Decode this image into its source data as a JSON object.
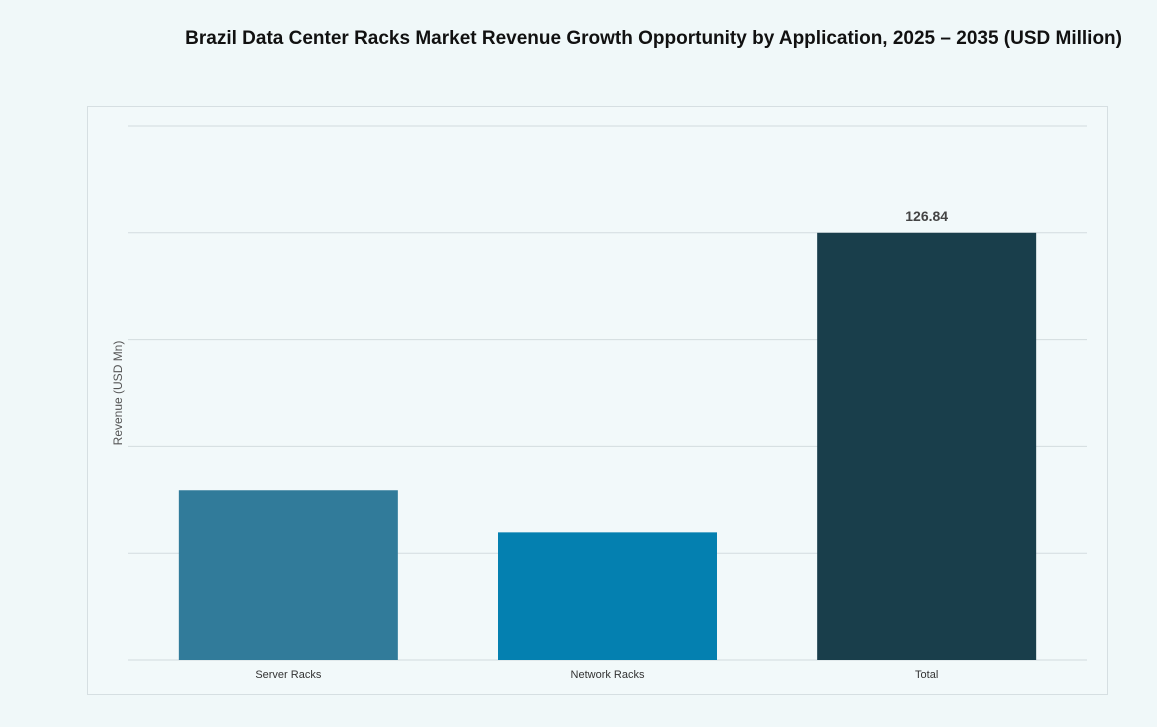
{
  "chart_data": {
    "type": "bar",
    "title": "Brazil Data Center Racks Market Revenue Growth Opportunity by Application, 2025 – 2035 (USD Million)",
    "xlabel": "",
    "ylabel": "Revenue (USD Mn)",
    "categories": [
      "Server Racks",
      "Network Racks",
      "Total"
    ],
    "values": [
      50.4,
      37.9,
      126.84
    ],
    "data_labels": [
      "",
      "",
      "126.84"
    ],
    "colors": [
      "#317b9a",
      "#0480b0",
      "#193e4b"
    ],
    "ylim": [
      0,
      158.55
    ],
    "grid": true,
    "gridline_count": 6,
    "legend": "none"
  }
}
